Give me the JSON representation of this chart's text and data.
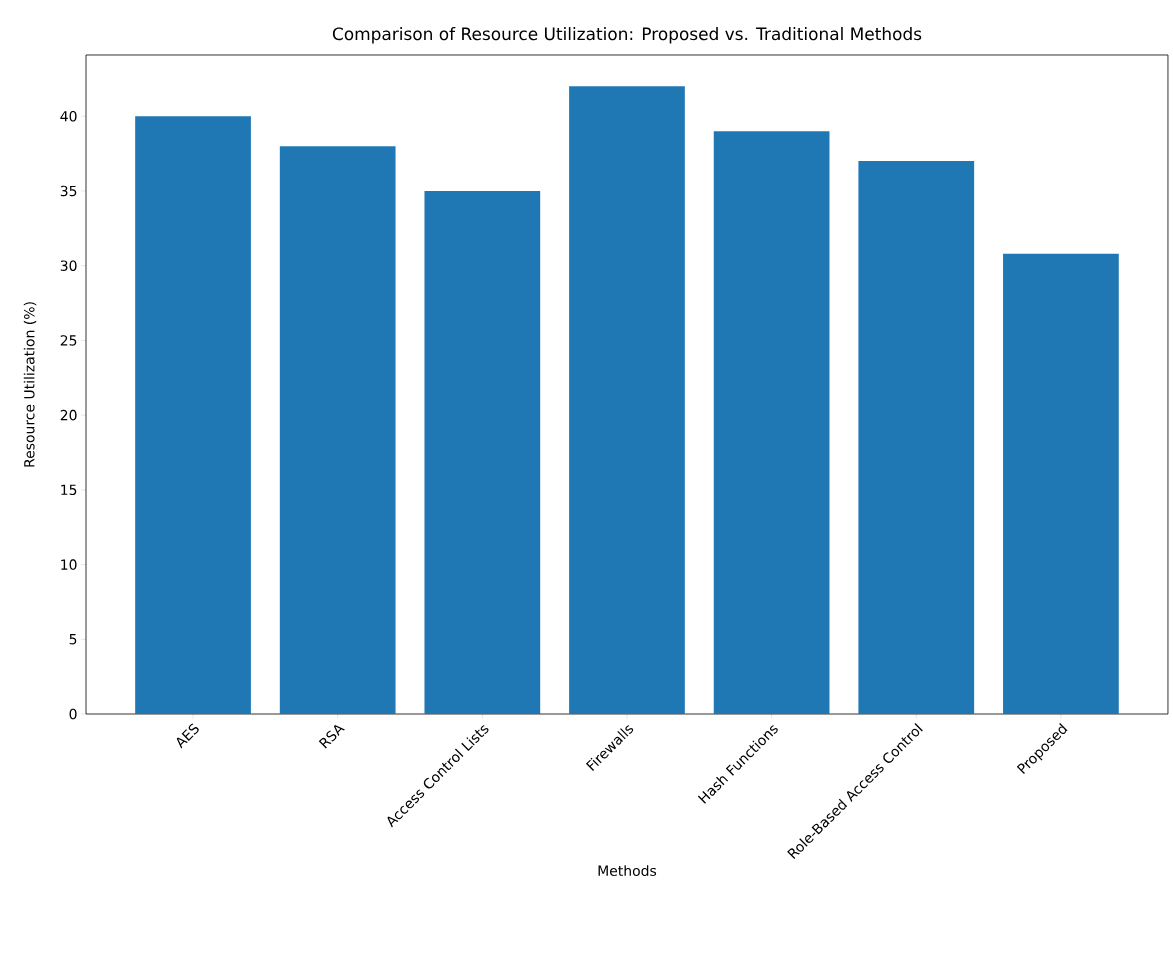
{
  "chart_data": {
    "type": "bar",
    "title": "Comparison of Resource Utilization: Proposed vs. Traditional Methods",
    "xlabel": "Methods",
    "ylabel": "Resource Utilization (%)",
    "categories": [
      "AES",
      "RSA",
      "Access Control Lists",
      "Firewalls",
      "Hash Functions",
      "Role-Based Access Control",
      "Proposed"
    ],
    "values": [
      40,
      38,
      35,
      42,
      39,
      37,
      30.8
    ],
    "color": "#1f77b4",
    "ylim": [
      0,
      44.1
    ],
    "yticks": [
      0,
      5,
      10,
      15,
      20,
      25,
      30,
      35,
      40
    ]
  }
}
